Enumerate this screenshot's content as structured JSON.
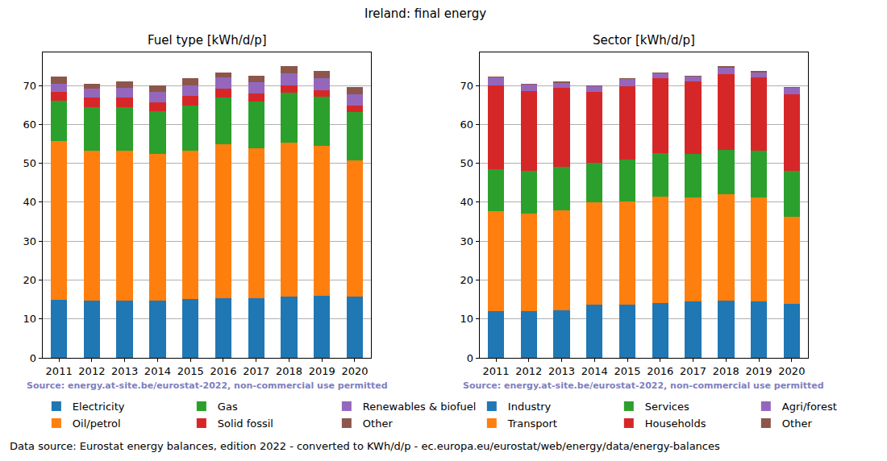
{
  "title": "Ireland: final energy",
  "footer": "Data source: Eurostat energy balances, edition 2022 - converted to KWh/d/p - ec.europa.eu/eurostat/web/energy/data/energy-balances",
  "chart_data": [
    {
      "type": "bar",
      "stacked": true,
      "title": "Fuel type [kWh/d/p]",
      "annotations": [
        "Source: energy.at-site.be/eurostat-2022, non-commercial use permitted"
      ],
      "categories": [
        "2011",
        "2012",
        "2013",
        "2014",
        "2015",
        "2016",
        "2017",
        "2018",
        "2019",
        "2020"
      ],
      "series": [
        {
          "name": "Electricity",
          "color": "#1f77b4",
          "values": [
            14.9,
            14.7,
            14.7,
            14.7,
            15.1,
            15.3,
            15.3,
            15.7,
            15.9,
            15.7
          ]
        },
        {
          "name": "Oil/petrol",
          "color": "#ff7f0e",
          "values": [
            40.9,
            38.6,
            38.6,
            37.8,
            38.2,
            39.5,
            38.5,
            39.5,
            38.6,
            35.0
          ]
        },
        {
          "name": "Gas",
          "color": "#2ca02c",
          "values": [
            10.3,
            11.1,
            11.1,
            10.9,
            11.6,
            12.0,
            12.1,
            13.0,
            12.7,
            12.5
          ]
        },
        {
          "name": "Solid fossil",
          "color": "#d62728",
          "values": [
            2.3,
            2.4,
            2.4,
            2.3,
            2.5,
            2.4,
            2.0,
            1.8,
            1.6,
            1.6
          ]
        },
        {
          "name": "Renewables & biofuel",
          "color": "#9467bd",
          "values": [
            2.1,
            2.3,
            2.5,
            2.7,
            2.6,
            2.8,
            2.9,
            3.2,
            3.1,
            3.0
          ]
        },
        {
          "name": "Other",
          "color": "#8c564b",
          "values": [
            1.8,
            1.4,
            1.7,
            1.6,
            1.8,
            1.4,
            1.6,
            1.7,
            1.8,
            1.7
          ]
        }
      ],
      "ylim": [
        0,
        78.5
      ],
      "yticks": [
        0,
        10,
        20,
        30,
        40,
        50,
        60,
        70
      ],
      "grid": true,
      "legend": "bottom"
    },
    {
      "type": "bar",
      "stacked": true,
      "title": "Sector [kWh/d/p]",
      "annotations": [
        "Source: energy.at-site.be/eurostat-2022, non-commercial use permitted"
      ],
      "categories": [
        "2011",
        "2012",
        "2013",
        "2014",
        "2015",
        "2016",
        "2017",
        "2018",
        "2019",
        "2020"
      ],
      "series": [
        {
          "name": "Industry",
          "color": "#1f77b4",
          "values": [
            12.0,
            12.0,
            12.3,
            13.6,
            13.6,
            14.0,
            14.4,
            14.8,
            14.6,
            13.8
          ]
        },
        {
          "name": "Transport",
          "color": "#ff7f0e",
          "values": [
            25.8,
            25.0,
            25.7,
            26.4,
            26.6,
            27.5,
            26.9,
            27.2,
            26.7,
            22.5
          ]
        },
        {
          "name": "Services",
          "color": "#2ca02c",
          "values": [
            10.7,
            11.0,
            11.0,
            10.2,
            10.8,
            11.1,
            11.0,
            11.5,
            12.0,
            11.7
          ]
        },
        {
          "name": "Households",
          "color": "#d62728",
          "values": [
            21.5,
            20.6,
            20.3,
            18.2,
            18.8,
            19.3,
            18.7,
            19.5,
            18.7,
            19.8
          ]
        },
        {
          "name": "Agri/forest",
          "color": "#9467bd",
          "values": [
            2.1,
            1.6,
            1.4,
            1.4,
            1.8,
            1.3,
            1.2,
            1.6,
            1.4,
            1.5
          ]
        },
        {
          "name": "Other",
          "color": "#8c564b",
          "values": [
            0.2,
            0.3,
            0.3,
            0.2,
            0.2,
            0.2,
            0.2,
            0.3,
            0.3,
            0.2
          ]
        }
      ],
      "ylim": [
        0,
        78.5
      ],
      "yticks": [
        0,
        10,
        20,
        30,
        40,
        50,
        60,
        70
      ],
      "grid": true,
      "legend": "bottom"
    }
  ]
}
